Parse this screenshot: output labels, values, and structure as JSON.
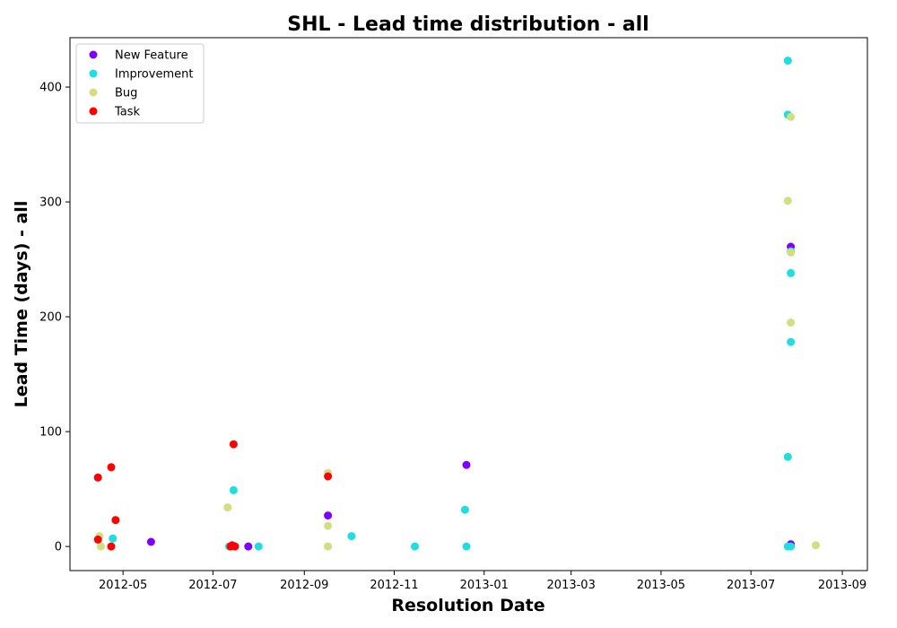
{
  "chart_data": {
    "type": "scatter",
    "title": "SHL - Lead time distribution - all",
    "xlabel": "Resolution Date",
    "ylabel": "Lead Time (days) - all",
    "xlim": [
      "2012-03-26",
      "2013-09-18"
    ],
    "ylim": [
      -21,
      443
    ],
    "x_ticks": [
      "2012-05",
      "2012-07",
      "2012-09",
      "2012-11",
      "2013-01",
      "2013-03",
      "2013-05",
      "2013-07",
      "2013-09"
    ],
    "y_ticks": [
      0,
      100,
      200,
      300,
      400
    ],
    "grid": false,
    "legend_position": "top-left",
    "series": [
      {
        "name": "New Feature",
        "color": "#8000ff",
        "points": [
          [
            "2012-05-20",
            4
          ],
          [
            "2012-07-25",
            0
          ],
          [
            "2012-09-17",
            27
          ],
          [
            "2012-12-20",
            71
          ],
          [
            "2013-07-28",
            261
          ],
          [
            "2013-07-28",
            2
          ]
        ]
      },
      {
        "name": "Improvement",
        "color": "#1fdde0",
        "points": [
          [
            "2012-04-24",
            7
          ],
          [
            "2012-07-12",
            0
          ],
          [
            "2012-07-15",
            49
          ],
          [
            "2012-08-01",
            0
          ],
          [
            "2012-10-03",
            9
          ],
          [
            "2012-11-15",
            0
          ],
          [
            "2012-12-19",
            32
          ],
          [
            "2012-12-20",
            0
          ],
          [
            "2013-07-26",
            423
          ],
          [
            "2013-07-26",
            376
          ],
          [
            "2013-07-28",
            257
          ],
          [
            "2013-07-28",
            238
          ],
          [
            "2013-07-28",
            178
          ],
          [
            "2013-07-26",
            78
          ],
          [
            "2013-07-26",
            0
          ],
          [
            "2013-07-28",
            0
          ]
        ]
      },
      {
        "name": "Bug",
        "color": "#d4dd80",
        "points": [
          [
            "2012-04-15",
            9
          ],
          [
            "2012-04-16",
            0
          ],
          [
            "2012-07-11",
            34
          ],
          [
            "2012-09-17",
            64
          ],
          [
            "2012-09-17",
            18
          ],
          [
            "2012-09-17",
            0
          ],
          [
            "2013-07-28",
            374
          ],
          [
            "2013-07-26",
            301
          ],
          [
            "2013-07-28",
            256
          ],
          [
            "2013-07-28",
            195
          ],
          [
            "2013-08-14",
            1
          ]
        ]
      },
      {
        "name": "Task",
        "color": "#ff0000",
        "points": [
          [
            "2012-04-14",
            60
          ],
          [
            "2012-04-14",
            6
          ],
          [
            "2012-04-23",
            69
          ],
          [
            "2012-04-23",
            0
          ],
          [
            "2012-04-26",
            23
          ],
          [
            "2012-07-13",
            0
          ],
          [
            "2012-07-14",
            1
          ],
          [
            "2012-07-15",
            89
          ],
          [
            "2012-07-16",
            0
          ],
          [
            "2012-09-17",
            61
          ]
        ]
      }
    ]
  }
}
